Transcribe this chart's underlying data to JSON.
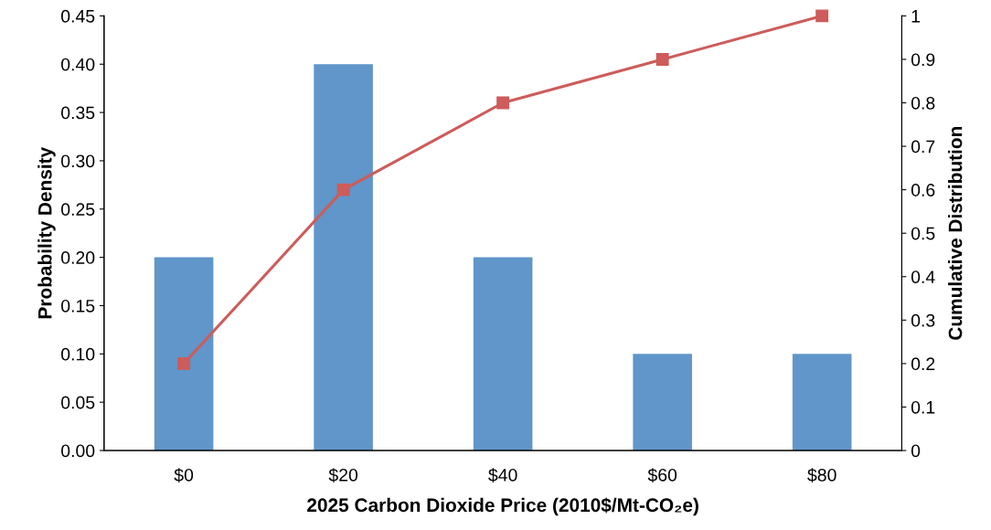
{
  "chart_data": {
    "type": "bar",
    "categories": [
      "$0",
      "$20",
      "$40",
      "$60",
      "$80"
    ],
    "xlabel": "2025 Carbon Dioxide Price (2010$/Mt-CO₂e)",
    "ylabel": "Probability Density",
    "y2label": "Cumulative Distribution",
    "series": [
      {
        "color": "#6096c9",
        "values": [
          0.2,
          0.4,
          0.2,
          0.1,
          0.1
        ]
      },
      {
        "type": "line",
        "axis": "y2",
        "color": "#cd5c5a",
        "marker": "square",
        "values": [
          0.2,
          0.6,
          0.8,
          0.9,
          1.0
        ]
      }
    ],
    "ylim": [
      0,
      0.45
    ],
    "yticks": [
      {
        "value": 0,
        "label": "0.00"
      },
      {
        "value": 0.05,
        "label": "0.05"
      },
      {
        "value": 0.1,
        "label": "0.10"
      },
      {
        "value": 0.15,
        "label": "0.15"
      },
      {
        "value": 0.2,
        "label": "0.20"
      },
      {
        "value": 0.25,
        "label": "0.25"
      },
      {
        "value": 0.3,
        "label": "0.30"
      },
      {
        "value": 0.35,
        "label": "0.35"
      },
      {
        "value": 0.4,
        "label": "0.40"
      },
      {
        "value": 0.45,
        "label": "0.45"
      }
    ],
    "y2lim": [
      0,
      1
    ],
    "y2ticks": [
      0,
      0.1,
      0.2,
      0.3,
      0.4,
      0.5,
      0.6,
      0.7,
      0.8,
      0.9,
      1
    ],
    "grid": false,
    "legend": false
  }
}
